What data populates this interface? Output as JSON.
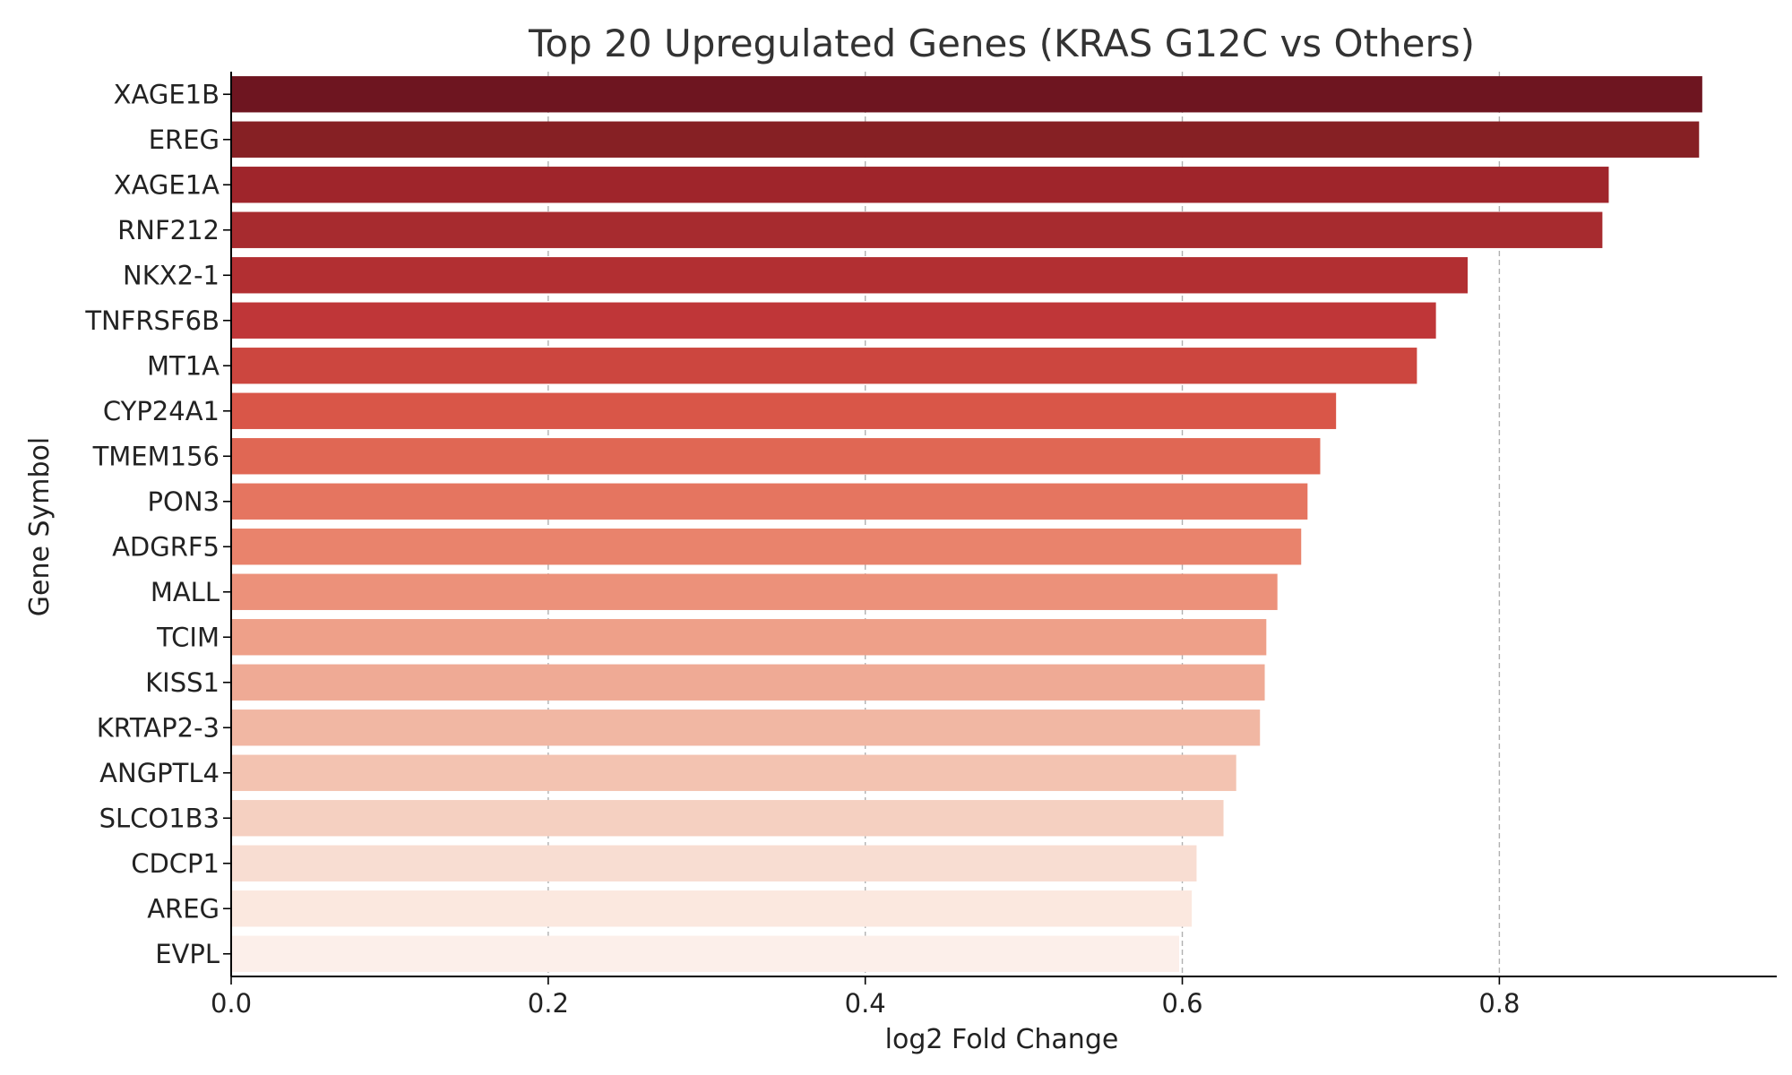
{
  "chart_data": {
    "type": "bar",
    "orientation": "horizontal",
    "title": "Top 20 Upregulated Genes (KRAS G12C vs Others)",
    "xlabel": "log2 Fold Change",
    "ylabel": "Gene Symbol",
    "xlim": [
      0.0,
      0.975
    ],
    "xticks": [
      0.0,
      0.2,
      0.4,
      0.6,
      0.8
    ],
    "xtick_labels": [
      "0.0",
      "0.2",
      "0.4",
      "0.6",
      "0.8"
    ],
    "grid": "vertical dashed",
    "categories": [
      "XAGE1B",
      "EREG",
      "XAGE1A",
      "RNF212",
      "NKX2-1",
      "TNFRSF6B",
      "MT1A",
      "CYP24A1",
      "TMEM156",
      "PON3",
      "ADGRF5",
      "MALL",
      "TCIM",
      "KISS1",
      "KRTAP2-3",
      "ANGPTL4",
      "SLCO1B3",
      "CDCP1",
      "AREG",
      "EVPL"
    ],
    "values": [
      0.928,
      0.926,
      0.869,
      0.865,
      0.78,
      0.76,
      0.748,
      0.697,
      0.687,
      0.679,
      0.675,
      0.66,
      0.653,
      0.652,
      0.649,
      0.634,
      0.626,
      0.609,
      0.606,
      0.598
    ],
    "colors": [
      "#6e1520",
      "#862024",
      "#9f252b",
      "#a72b2f",
      "#b22f32",
      "#bf3638",
      "#cc463f",
      "#d95648",
      "#e06754",
      "#e57560",
      "#e9836c",
      "#ec917a",
      "#eea089",
      "#efaa95",
      "#f1b7a3",
      "#f3c3b1",
      "#f5d0c1",
      "#f8ddd2",
      "#fbe8df",
      "#fcefea"
    ]
  }
}
